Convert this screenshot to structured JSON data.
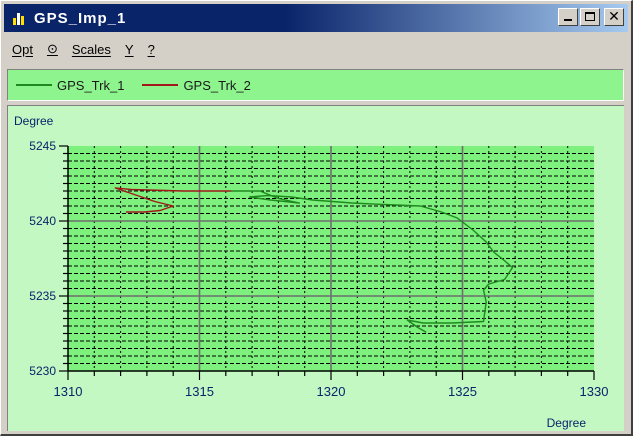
{
  "window": {
    "title": "GPS_Imp_1",
    "icon": "chart-icon"
  },
  "menu": {
    "items": [
      "Opt",
      "⊙",
      "Scales",
      "Y",
      "?"
    ]
  },
  "legend": {
    "entries": [
      {
        "name": "GPS_Trk_1",
        "color": "#1e8a1e"
      },
      {
        "name": "GPS_Trk_2",
        "color": "#a01818"
      }
    ]
  },
  "chart_data": {
    "type": "line",
    "xlabel": "Degree",
    "ylabel": "Degree",
    "xlim": [
      1310,
      1330
    ],
    "ylim": [
      5230,
      5245
    ],
    "xticks": [
      1310,
      1315,
      1320,
      1325,
      1330
    ],
    "yticks": [
      5230,
      5235,
      5240,
      5245
    ],
    "x_minor_step": 1,
    "y_minor_step": 0.5,
    "grid": true,
    "plot_background": "#7ef07e",
    "panel_background": "#c3f8c3",
    "series": [
      {
        "name": "GPS_Trk_1",
        "color": "#1e8a1e",
        "points": [
          [
            1316.2,
            5242.0
          ],
          [
            1317.3,
            5242.0
          ],
          [
            1318.0,
            5241.5
          ],
          [
            1318.8,
            5241.2
          ],
          [
            1317.7,
            5241.4
          ],
          [
            1316.9,
            5241.6
          ],
          [
            1317.6,
            5241.7
          ],
          [
            1318.5,
            5241.6
          ],
          [
            1319.3,
            5241.4
          ],
          [
            1320.8,
            5241.2
          ],
          [
            1322.0,
            5241.1
          ],
          [
            1323.4,
            5241.0
          ],
          [
            1324.2,
            5240.6
          ],
          [
            1324.8,
            5240.2
          ],
          [
            1325.4,
            5239.4
          ],
          [
            1325.9,
            5238.6
          ],
          [
            1326.2,
            5237.9
          ],
          [
            1326.5,
            5237.5
          ],
          [
            1326.9,
            5236.9
          ],
          [
            1326.6,
            5236.1
          ],
          [
            1326.0,
            5235.8
          ],
          [
            1325.8,
            5235.4
          ],
          [
            1325.9,
            5234.6
          ],
          [
            1325.8,
            5233.3
          ],
          [
            1324.6,
            5233.2
          ],
          [
            1323.5,
            5233.2
          ],
          [
            1322.9,
            5233.4
          ],
          [
            1323.3,
            5232.9
          ],
          [
            1323.6,
            5232.6
          ],
          [
            1323.3,
            5232.9
          ]
        ]
      },
      {
        "name": "GPS_Trk_2",
        "color": "#a01818",
        "points": [
          [
            1316.2,
            5242.0
          ],
          [
            1314.4,
            5242.0
          ],
          [
            1312.4,
            5242.1
          ],
          [
            1311.8,
            5242.2
          ],
          [
            1312.3,
            5241.9
          ],
          [
            1312.8,
            5241.6
          ],
          [
            1313.3,
            5241.3
          ],
          [
            1314.0,
            5241.0
          ],
          [
            1313.5,
            5240.7
          ],
          [
            1312.9,
            5240.6
          ],
          [
            1312.2,
            5240.6
          ]
        ]
      }
    ]
  }
}
